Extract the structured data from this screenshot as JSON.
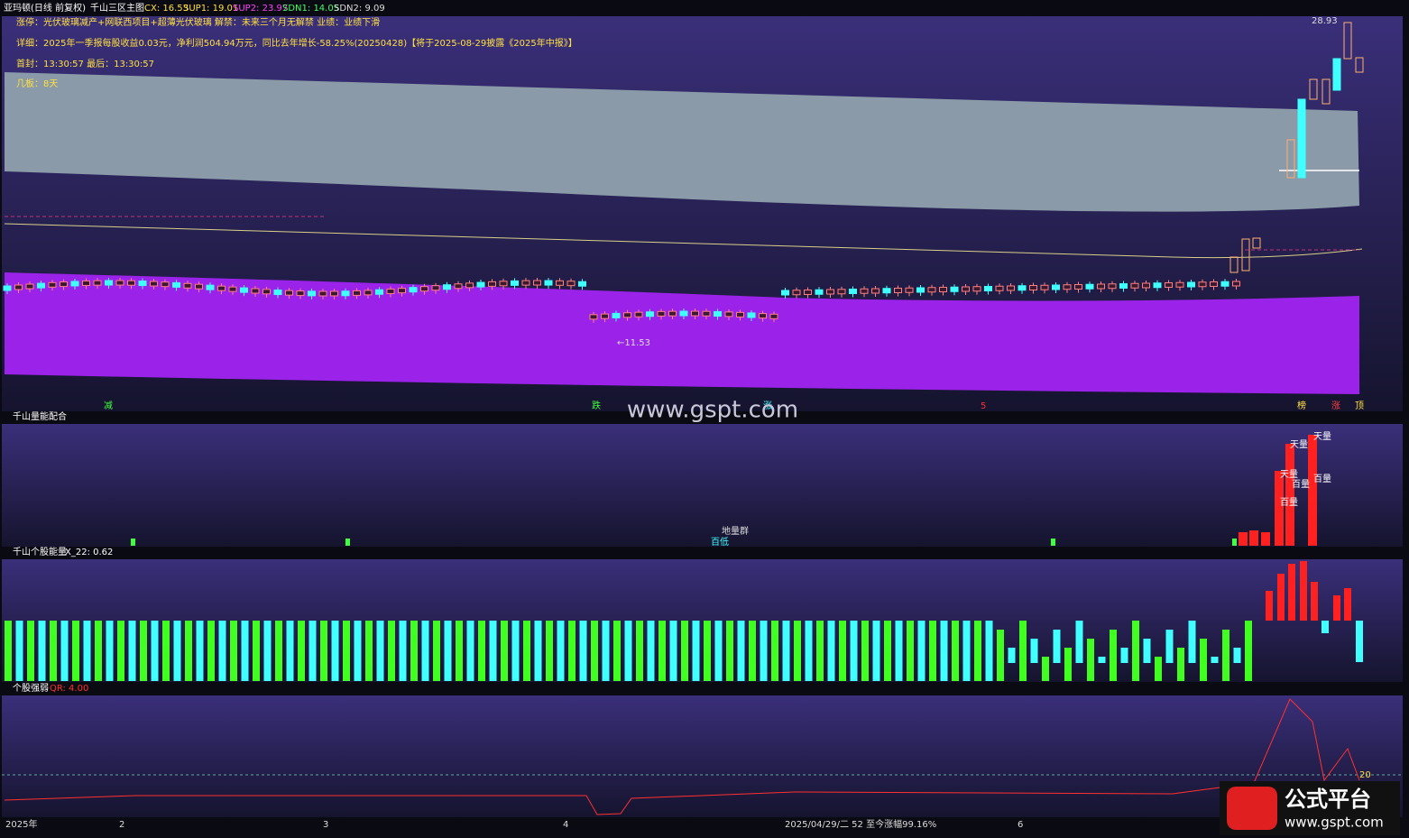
{
  "header": {
    "title": "亚玛顿(日线 前复权)",
    "indicator": "千山三区主图",
    "cx": "CX: 16.53",
    "sup1": "SUP1: 19.01",
    "sup2": "SUP2: 23.97",
    "sdn1": "SDN1: 14.05",
    "sdn2": "SDN2: 9.09"
  },
  "info": [
    "涨停：光伏玻璃减产+网联西项目+超薄光伏玻璃 解禁：未来三个月无解禁 业绩：业绩下滑",
    "详细：2025年一季报每股收益0.03元，净利润504.94万元，同比去年增长-58.25%(20250428)【将于2025-08-29披露《2025年中报》】",
    "首封：13:30:57  最后：13:30:57",
    "几板：8天"
  ],
  "main_labels": {
    "high": "28.93",
    "low": "←11.53"
  },
  "signals": [
    "减",
    "跌",
    "涨",
    "5",
    "榜",
    "涨",
    "顶"
  ],
  "watermark": "www.gspt.com",
  "panels": [
    {
      "title": "千山量能配合",
      "labels": [
        "天量",
        "天量",
        "百量",
        "百量",
        "天量",
        "百量",
        "地量群",
        "百低"
      ]
    },
    {
      "title": "千山个股能量",
      "value": "X_22: 0.62"
    },
    {
      "title": "个股强弱",
      "value": "QR: 4.00",
      "level": "20"
    }
  ],
  "x_axis": [
    "2025年",
    "2",
    "3",
    "4",
    "2025/04/29/二 52 至今涨幅99.16%",
    "6"
  ],
  "logo": {
    "text": "公式平台",
    "url": "www.gspt.com"
  }
}
